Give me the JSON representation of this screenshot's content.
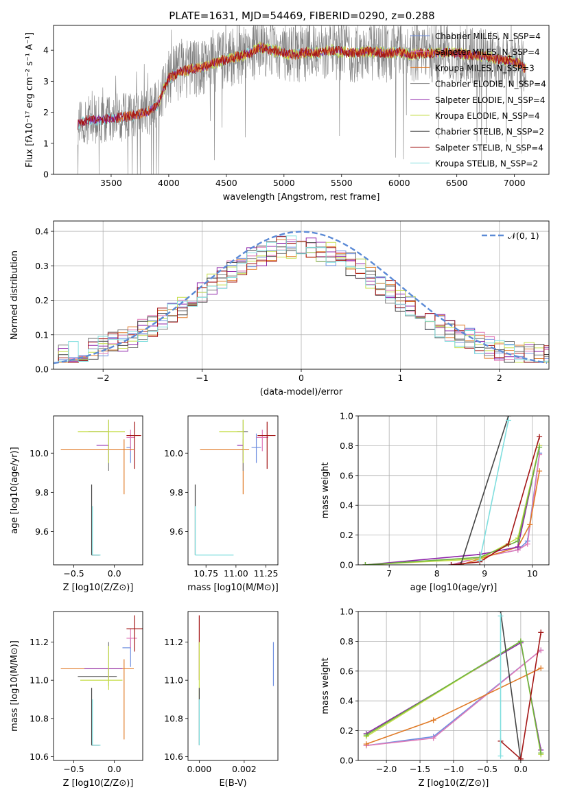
{
  "figure": {
    "title": "PLATE=1631, MJD=54469, FIBERID=0290, z=0.288"
  },
  "palette": {
    "chabrier_miles": "#6f8fe0",
    "salpeter_miles": "#e07ab8",
    "kroupa_miles": "#e07b28",
    "chabrier_elodie": "#7a7a7a",
    "salpeter_elodie": "#8e24aa",
    "kroupa_elodie": "#c6de4a",
    "chabrier_stelib": "#444444",
    "salpeter_stelib": "#a31515",
    "kroupa_stelib": "#7fdede",
    "gauss": "#5b8ad6",
    "green": "#6db33f",
    "grid": "#b0b0b0"
  },
  "chart_data": [
    {
      "id": "spectrum",
      "type": "line",
      "xlabel": "wavelength [Angstrom, rest frame]",
      "ylabel": "Flux [fλ10⁻¹⁷ erg cm⁻² s⁻¹ A⁻¹]",
      "xlim": [
        3000,
        7300
      ],
      "ylim": [
        0,
        4.8
      ],
      "xticks": [
        3500,
        4000,
        4500,
        5000,
        5500,
        6000,
        6500,
        7000
      ],
      "yticks": [
        0,
        1,
        2,
        3,
        4
      ],
      "grid": false,
      "legend_position": "top-right",
      "legend": [
        {
          "label": "Chabrier MILES, N_SSP=4",
          "color_key": "chabrier_miles"
        },
        {
          "label": "Salpeter MILES, N_SSP=4",
          "color_key": "salpeter_miles"
        },
        {
          "label": "Kroupa MILES, N_SSP=3",
          "color_key": "kroupa_miles"
        },
        {
          "label": "Chabrier ELODIE, N_SSP=4",
          "color_key": "chabrier_elodie"
        },
        {
          "label": "Salpeter ELODIE, N_SSP=4",
          "color_key": "salpeter_elodie"
        },
        {
          "label": "Kroupa ELODIE, N_SSP=4",
          "color_key": "kroupa_elodie"
        },
        {
          "label": "Chabrier STELIB, N_SSP=2",
          "color_key": "chabrier_stelib"
        },
        {
          "label": "Salpeter STELIB, N_SSP=4",
          "color_key": "salpeter_stelib"
        },
        {
          "label": "Kroupa STELIB, N_SSP=2",
          "color_key": "kroupa_stelib"
        }
      ],
      "model_continuum": {
        "x": [
          3210,
          3300,
          3400,
          3500,
          3600,
          3700,
          3800,
          3900,
          3930,
          4000,
          4100,
          4200,
          4300,
          4400,
          4500,
          4600,
          4700,
          4800,
          4900,
          5000,
          5100,
          5200,
          5300,
          5400,
          5500,
          5600,
          5700,
          5800,
          5900,
          6000,
          6100,
          6200,
          6300,
          6400,
          6500,
          6600,
          6700,
          6800,
          6900,
          7000,
          7100
        ],
        "y": [
          1.6,
          1.75,
          1.75,
          1.8,
          1.85,
          1.9,
          2.0,
          2.2,
          2.5,
          3.1,
          3.3,
          3.4,
          3.45,
          3.6,
          3.7,
          3.8,
          3.9,
          4.1,
          4.0,
          3.9,
          3.85,
          3.95,
          3.9,
          4.0,
          3.95,
          3.9,
          3.95,
          3.95,
          3.9,
          3.95,
          3.85,
          3.9,
          3.9,
          3.95,
          3.9,
          3.85,
          3.85,
          3.75,
          3.7,
          3.65,
          3.4
        ]
      }
    },
    {
      "id": "residuals",
      "type": "step",
      "xlabel": "(data-model)/error",
      "ylabel": "Normed distribution",
      "xlim": [
        -2.5,
        2.5
      ],
      "ylim": [
        0,
        0.43
      ],
      "xticks": [
        -2,
        -1,
        0,
        1,
        2
      ],
      "yticks": [
        0.0,
        0.1,
        0.2,
        0.3,
        0.4
      ],
      "grid": true,
      "legend_position": "top-right",
      "legend_label": "𝒩(0, 1)",
      "gauss": {
        "mu": 0,
        "sigma": 1
      }
    },
    {
      "id": "age_vs_Z",
      "type": "errorbar",
      "xlabel": "Z [log10(Z/Z⊙)]",
      "ylabel": "age  [log10(age/yr)]",
      "xlim": [
        -0.75,
        0.35
      ],
      "ylim": [
        9.43,
        10.19
      ],
      "xticks": [
        -0.5,
        0.0
      ],
      "yticks": [
        9.6,
        9.8,
        10.0
      ],
      "grid": false,
      "points": [
        {
          "color_key": "chabrier_miles",
          "x": 0.2,
          "xerr": [
            0.05,
            0.0
          ],
          "y": 10.03,
          "yerr": [
            0.08,
            0.07
          ]
        },
        {
          "color_key": "salpeter_miles",
          "x": 0.2,
          "xerr": [
            0.05,
            0.05
          ],
          "y": 10.08,
          "yerr": [
            0.07,
            0.04
          ]
        },
        {
          "color_key": "kroupa_miles",
          "x": 0.12,
          "xerr": [
            0.78,
            0.12
          ],
          "y": 10.02,
          "yerr": [
            0.23,
            0.05
          ]
        },
        {
          "color_key": "chabrier_elodie",
          "x": -0.07,
          "xerr": [
            0.25,
            0.0
          ],
          "y": 10.11,
          "yerr": [
            0.2,
            0.06
          ]
        },
        {
          "color_key": "salpeter_elodie",
          "x": -0.07,
          "xerr": [
            0.15,
            0.0
          ],
          "y": 10.04,
          "yerr": [
            0.08,
            0.0
          ]
        },
        {
          "color_key": "kroupa_elodie",
          "x": -0.07,
          "xerr": [
            0.38,
            0.2
          ],
          "y": 10.11,
          "yerr": [
            0.16,
            0.06
          ]
        },
        {
          "color_key": "chabrier_stelib",
          "x": -0.28,
          "xerr": [
            0.0,
            0.1
          ],
          "y": 9.48,
          "yerr": [
            0.0,
            0.36
          ]
        },
        {
          "color_key": "salpeter_stelib",
          "x": 0.25,
          "xerr": [
            0.1,
            0.08
          ],
          "y": 10.09,
          "yerr": [
            0.17,
            0.07
          ]
        },
        {
          "color_key": "kroupa_stelib",
          "x": -0.27,
          "xerr": [
            0.0,
            0.1
          ],
          "y": 9.48,
          "yerr": [
            0.0,
            0.25
          ]
        }
      ]
    },
    {
      "id": "age_vs_mass",
      "type": "errorbar",
      "xlabel": "mass [log10(M/M⊙)]",
      "ylabel": "",
      "xlim": [
        10.6,
        11.35
      ],
      "ylim": [
        9.43,
        10.19
      ],
      "xticks": [
        10.75,
        11.0,
        11.25
      ],
      "yticks": [
        9.6,
        9.8,
        10.0
      ],
      "grid": false,
      "points": [
        {
          "color_key": "chabrier_miles",
          "x": 11.17,
          "xerr": [
            0.04,
            0.04
          ],
          "y": 10.03,
          "yerr": [
            0.08,
            0.07
          ]
        },
        {
          "color_key": "salpeter_miles",
          "x": 11.22,
          "xerr": [
            0.05,
            0.05
          ],
          "y": 10.08,
          "yerr": [
            0.07,
            0.04
          ]
        },
        {
          "color_key": "kroupa_miles",
          "x": 11.06,
          "xerr": [
            0.36,
            0.05
          ],
          "y": 10.02,
          "yerr": [
            0.23,
            0.05
          ]
        },
        {
          "color_key": "chabrier_elodie",
          "x": 11.06,
          "xerr": [
            0.05,
            0.04
          ],
          "y": 10.11,
          "yerr": [
            0.2,
            0.06
          ]
        },
        {
          "color_key": "salpeter_elodie",
          "x": 11.06,
          "xerr": [
            0.05,
            0.0
          ],
          "y": 10.04,
          "yerr": [
            0.08,
            0.0
          ]
        },
        {
          "color_key": "kroupa_elodie",
          "x": 11.06,
          "xerr": [
            0.2,
            0.0
          ],
          "y": 10.11,
          "yerr": [
            0.16,
            0.06
          ]
        },
        {
          "color_key": "chabrier_stelib",
          "x": 10.66,
          "xerr": [
            0.0,
            0.0
          ],
          "y": 9.48,
          "yerr": [
            0.0,
            0.36
          ]
        },
        {
          "color_key": "salpeter_stelib",
          "x": 11.26,
          "xerr": [
            0.08,
            0.07
          ],
          "y": 10.09,
          "yerr": [
            0.17,
            0.07
          ]
        },
        {
          "color_key": "kroupa_stelib",
          "x": 10.66,
          "xerr": [
            0.0,
            0.32
          ],
          "y": 9.48,
          "yerr": [
            0.0,
            0.25
          ]
        }
      ]
    },
    {
      "id": "mass_weight_vs_age",
      "type": "line",
      "xlabel": "age  [log10(age/yr)]",
      "ylabel": "mass weight",
      "xlim": [
        6.35,
        10.35
      ],
      "ylim": [
        0,
        1.0
      ],
      "xticks": [
        7,
        8,
        9,
        10
      ],
      "yticks": [
        0.0,
        0.2,
        0.4,
        0.6,
        0.8,
        1.0
      ],
      "grid": true,
      "series": [
        {
          "color_key": "chabrier_miles",
          "x": [
            8.3,
            8.9,
            9.7,
            9.9,
            10.15
          ],
          "y": [
            0.0,
            0.05,
            0.1,
            0.16,
            0.75
          ]
        },
        {
          "color_key": "salpeter_miles",
          "x": [
            8.3,
            8.9,
            9.7,
            9.9,
            10.15
          ],
          "y": [
            0.0,
            0.05,
            0.1,
            0.14,
            0.74
          ]
        },
        {
          "color_key": "kroupa_miles",
          "x": [
            8.5,
            9.0,
            9.7,
            9.95,
            10.15
          ],
          "y": [
            0.0,
            0.05,
            0.12,
            0.27,
            0.63
          ]
        },
        {
          "color_key": "salpeter_elodie",
          "x": [
            6.5,
            8.9,
            9.7,
            10.15
          ],
          "y": [
            0.0,
            0.07,
            0.12,
            0.8
          ]
        },
        {
          "color_key": "kroupa_elodie",
          "x": [
            6.5,
            8.9,
            9.7,
            10.15
          ],
          "y": [
            0.0,
            0.04,
            0.18,
            0.8
          ]
        },
        {
          "color_key": "green",
          "x": [
            6.5,
            8.9,
            9.7,
            10.15
          ],
          "y": [
            0.0,
            0.05,
            0.16,
            0.79
          ]
        },
        {
          "color_key": "chabrier_stelib",
          "x": [
            8.5,
            9.5
          ],
          "y": [
            0.0,
            1.0
          ]
        },
        {
          "color_key": "salpeter_stelib",
          "x": [
            8.3,
            8.9,
            9.5,
            10.15
          ],
          "y": [
            0.0,
            0.02,
            0.14,
            0.86
          ]
        },
        {
          "color_key": "kroupa_stelib",
          "x": [
            8.9,
            9.5
          ],
          "y": [
            0.03,
            0.97
          ]
        }
      ]
    },
    {
      "id": "mass_vs_Z",
      "type": "errorbar",
      "xlabel": "Z [log10(Z/Z⊙)]",
      "ylabel": "mass [log10(M/M⊙)]",
      "xlim": [
        -0.75,
        0.35
      ],
      "ylim": [
        10.58,
        11.36
      ],
      "xticks": [
        -0.5,
        0.0
      ],
      "yticks": [
        10.6,
        10.8,
        11.0,
        11.2
      ],
      "grid": false,
      "points": [
        {
          "color_key": "chabrier_miles",
          "x": 0.2,
          "xerr": [
            0.1,
            0.0
          ],
          "y": 11.17,
          "yerr": [
            0.1,
            0.05
          ]
        },
        {
          "color_key": "salpeter_miles",
          "x": 0.2,
          "xerr": [
            0.05,
            0.08
          ],
          "y": 11.22,
          "yerr": [
            0.05,
            0.05
          ]
        },
        {
          "color_key": "kroupa_miles",
          "x": 0.12,
          "xerr": [
            0.78,
            0.12
          ],
          "y": 11.06,
          "yerr": [
            0.37,
            0.05
          ]
        },
        {
          "color_key": "chabrier_elodie",
          "x": -0.07,
          "xerr": [
            0.38,
            0.1
          ],
          "y": 11.02,
          "yerr": [
            0.05,
            0.18
          ]
        },
        {
          "color_key": "salpeter_elodie",
          "x": -0.07,
          "xerr": [
            0.3,
            0.17
          ],
          "y": 11.06,
          "yerr": [
            0.05,
            0.0
          ]
        },
        {
          "color_key": "kroupa_elodie",
          "x": -0.07,
          "xerr": [
            0.35,
            0.17
          ],
          "y": 11.0,
          "yerr": [
            0.05,
            0.18
          ]
        },
        {
          "color_key": "chabrier_stelib",
          "x": -0.28,
          "xerr": [
            0.0,
            0.1
          ],
          "y": 10.66,
          "yerr": [
            0.0,
            0.3
          ]
        },
        {
          "color_key": "salpeter_stelib",
          "x": 0.25,
          "xerr": [
            0.1,
            0.1
          ],
          "y": 11.27,
          "yerr": [
            0.12,
            0.07
          ]
        },
        {
          "color_key": "kroupa_stelib",
          "x": -0.27,
          "xerr": [
            0.0,
            0.1
          ],
          "y": 10.66,
          "yerr": [
            0.0,
            0.24
          ]
        }
      ]
    },
    {
      "id": "mass_vs_ebv",
      "type": "errorbar",
      "xlabel": "E(B-V)",
      "ylabel": "",
      "xlim": [
        -0.0005,
        0.0035
      ],
      "ylim": [
        10.58,
        11.36
      ],
      "xticks": [
        0.0,
        0.002
      ],
      "yticks": [
        10.6,
        10.8,
        11.0,
        11.2
      ],
      "grid": false,
      "points": [
        {
          "color_key": "chabrier_miles",
          "x": 0.0033,
          "xerr": [
            0,
            0
          ],
          "y": 11.1,
          "yerr": [
            0.13,
            0.1
          ]
        },
        {
          "color_key": "salpeter_stelib",
          "x": 0.0,
          "xerr": [
            0,
            0
          ],
          "y": 11.2,
          "yerr": [
            0.2,
            0.14
          ]
        },
        {
          "color_key": "kroupa_elodie",
          "x": 0.0,
          "xerr": [
            0,
            0
          ],
          "y": 11.05,
          "yerr": [
            0.15,
            0.15
          ]
        },
        {
          "color_key": "chabrier_stelib",
          "x": 0.0,
          "xerr": [
            0,
            0
          ],
          "y": 10.66,
          "yerr": [
            0.0,
            0.3
          ]
        },
        {
          "color_key": "kroupa_stelib",
          "x": 0.0,
          "xerr": [
            0,
            0
          ],
          "y": 10.66,
          "yerr": [
            0.0,
            0.24
          ]
        }
      ]
    },
    {
      "id": "mass_weight_vs_Z",
      "type": "line",
      "xlabel": "Z [log10(Z/Z⊙)]",
      "ylabel": "mass weight",
      "xlim": [
        -2.42,
        0.42
      ],
      "ylim": [
        0,
        1.0
      ],
      "xticks": [
        -2.0,
        -1.5,
        -1.0,
        -0.5,
        0.0
      ],
      "yticks": [
        0.0,
        0.2,
        0.4,
        0.6,
        0.8,
        1.0
      ],
      "grid": true,
      "series": [
        {
          "color_key": "chabrier_miles",
          "x": [
            -2.3,
            -1.3,
            0.3
          ],
          "y": [
            0.1,
            0.16,
            0.74
          ]
        },
        {
          "color_key": "salpeter_miles",
          "x": [
            -2.3,
            -1.3,
            0.3
          ],
          "y": [
            0.1,
            0.15,
            0.74
          ]
        },
        {
          "color_key": "kroupa_miles",
          "x": [
            -2.3,
            -1.3,
            0.3
          ],
          "y": [
            0.11,
            0.27,
            0.62
          ]
        },
        {
          "color_key": "salpeter_elodie",
          "x": [
            -2.3,
            0.0,
            0.3
          ],
          "y": [
            0.18,
            0.79,
            0.07
          ]
        },
        {
          "color_key": "kroupa_elodie",
          "x": [
            -2.3,
            0.0,
            0.3
          ],
          "y": [
            0.16,
            0.8,
            0.04
          ]
        },
        {
          "color_key": "green",
          "x": [
            -2.3,
            0.0,
            0.3
          ],
          "y": [
            0.17,
            0.8,
            0.05
          ]
        },
        {
          "color_key": "chabrier_stelib",
          "x": [
            -0.3,
            0.0
          ],
          "y": [
            1.0,
            0.0
          ]
        },
        {
          "color_key": "salpeter_stelib",
          "x": [
            -0.3,
            0.0,
            0.3
          ],
          "y": [
            0.13,
            0.01,
            0.86
          ]
        },
        {
          "color_key": "kroupa_stelib",
          "x": [
            -0.3,
            -0.3
          ],
          "y": [
            0.03,
            0.97
          ]
        }
      ]
    }
  ]
}
